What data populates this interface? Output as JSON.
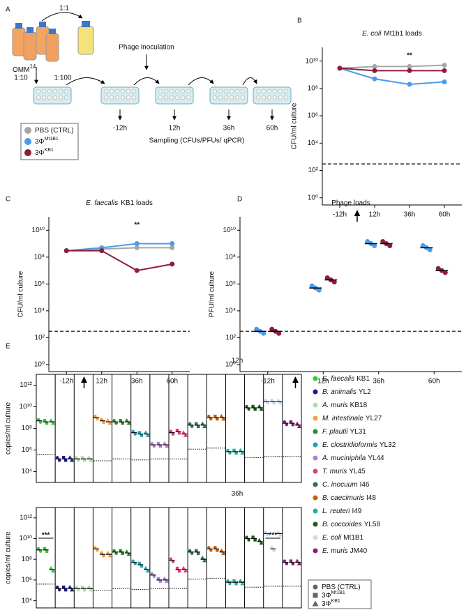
{
  "panel_labels": [
    "A",
    "B",
    "C",
    "D",
    "E"
  ],
  "schematic": {
    "omm": "OMM",
    "omm_sup": "14",
    "ratio_1": "1:1",
    "ratio_2": "1:10",
    "ratio_3": "1:100",
    "inoculation": "Phage inoculation",
    "times": [
      "-12h",
      "12h",
      "36h",
      "60h"
    ],
    "sampling": "Sampling (CFUs/PFUs/ qPCR)"
  },
  "groups": [
    {
      "name": "PBS (CTRL)",
      "color": "#a6a6a6"
    },
    {
      "name": "3Φ",
      "sup": "Mt1B1",
      "color": "#4a9be8"
    },
    {
      "name": "3Φ",
      "sup": "KB1",
      "color": "#8c1d3c"
    }
  ],
  "species": [
    {
      "species": "E. faecalis",
      "strain": "KB1",
      "color": "#33cc33"
    },
    {
      "species": "B. animalis",
      "strain": "YL2",
      "color": "#1a1a8c"
    },
    {
      "species": "A. muris",
      "strain": "KB18",
      "color": "#a8e0a8"
    },
    {
      "species": "M. intestinale",
      "strain": "YL27",
      "color": "#f0a040"
    },
    {
      "species": "F. plautii",
      "strain": "YL31",
      "color": "#2e8b2e"
    },
    {
      "species": "E. clostridioformis",
      "strain": "YL32",
      "color": "#2aa0b0"
    },
    {
      "species": "A. muciniphila",
      "strain": "YL44",
      "color": "#b080d8"
    },
    {
      "species": "T. muris",
      "strain": "YL45",
      "color": "#e04070"
    },
    {
      "species": "C. inocuum",
      "strain": "I46",
      "color": "#2e6e5e"
    },
    {
      "species": "B. caecimuris",
      "strain": "I48",
      "color": "#c06010"
    },
    {
      "species": "L. reuteri",
      "strain": "I49",
      "color": "#20b0a0"
    },
    {
      "species": "B. coccoides",
      "strain": "YL58",
      "color": "#1e5a1e"
    },
    {
      "species": "E. coli",
      "strain": "Mt1B1",
      "color": "#c8dcf0"
    },
    {
      "species": "E. muris",
      "strain": "JM40",
      "color": "#8b1a7a"
    }
  ],
  "markers": [
    {
      "name": "PBS (CTRL)"
    },
    {
      "name": "3Φ",
      "sup": "Mt1B1"
    },
    {
      "name": "3Φ",
      "sup": "KB1"
    }
  ],
  "chart_data": [
    {
      "type": "line",
      "title_species": "E. coli",
      "title": "Mt1b1 loads",
      "ylabel": "CFU/ml culture",
      "categories": [
        "-12h",
        "12h",
        "36h",
        "60h"
      ],
      "log_scale": true,
      "ylim": [
        0.3,
        100000000000.0
      ],
      "yticks": [
        {
          "value": 1,
          "label": "10⁰"
        },
        {
          "value": 100,
          "label": "10²"
        },
        {
          "value": 10000,
          "label": "10⁴"
        },
        {
          "value": 1000000,
          "label": "10⁶"
        },
        {
          "value": 100000000,
          "label": "10⁸"
        },
        {
          "value": 10000000000,
          "label": "10¹⁰"
        }
      ],
      "detection_limit": 300,
      "annotation": "**",
      "series": [
        {
          "color": "#a6a6a6",
          "values": [
            3000000000.0,
            4000000000.0,
            4000000000.0,
            5000000000.0
          ]
        },
        {
          "color": "#4a9be8",
          "values": [
            3000000000.0,
            500000000.0,
            200000000.0,
            300000000.0
          ]
        },
        {
          "color": "#8c1d3c",
          "values": [
            3000000000.0,
            2000000000.0,
            2000000000.0,
            2000000000.0
          ]
        }
      ]
    },
    {
      "type": "line",
      "title_species": "E. faecalis",
      "title": "KB1 loads",
      "ylabel": "CFU/ml culture",
      "categories": [
        "-12h",
        "12h",
        "36h",
        "60h"
      ],
      "log_scale": true,
      "ylim": [
        0.3,
        100000000000.0
      ],
      "yticks": [
        {
          "value": 1,
          "label": "10⁰"
        },
        {
          "value": 100,
          "label": "10²"
        },
        {
          "value": 10000,
          "label": "10⁴"
        },
        {
          "value": 1000000,
          "label": "10⁶"
        },
        {
          "value": 100000000,
          "label": "10⁸"
        },
        {
          "value": 10000000000,
          "label": "10¹⁰"
        }
      ],
      "detection_limit": 300,
      "annotation": "**",
      "series": [
        {
          "color": "#a6a6a6",
          "values": [
            300000000.0,
            400000000.0,
            500000000.0,
            500000000.0
          ]
        },
        {
          "color": "#4a9be8",
          "values": [
            300000000.0,
            500000000.0,
            1000000000.0,
            1000000000.0
          ]
        },
        {
          "color": "#8c1d3c",
          "values": [
            300000000.0,
            300000000.0,
            10000000.0,
            30000000.0
          ]
        }
      ]
    },
    {
      "type": "dot",
      "title": "Phage loads",
      "ylabel": "PFU/ml culture",
      "categories": [
        "-12h",
        "12h",
        "36h",
        "60h"
      ],
      "log_scale": true,
      "ylim": [
        0.3,
        100000000000.0
      ],
      "yticks": [
        {
          "value": 1,
          "label": "10⁰"
        },
        {
          "value": 100,
          "label": "10²"
        },
        {
          "value": 10000,
          "label": "10⁴"
        },
        {
          "value": 1000000,
          "label": "10⁶"
        },
        {
          "value": 100000000,
          "label": "10⁸"
        },
        {
          "value": 10000000000,
          "label": "10¹⁰"
        }
      ],
      "detection_limit": 300,
      "series": [
        {
          "color": "#4a9be8",
          "values": [
            300,
            500000.0,
            1000000000.0,
            500000000.0
          ]
        },
        {
          "color": "#8c1d3c",
          "values": [
            300,
            2000000.0,
            1000000000.0,
            10000000.0
          ]
        }
      ]
    },
    {
      "type": "strip",
      "title": "12h",
      "ylabel": "copies/ml culture",
      "log_scale": true,
      "ylim": [
        1000,
        10000000000000.0
      ],
      "yticks": [
        {
          "value": 10000,
          "label": "10⁴"
        },
        {
          "value": 1000000,
          "label": "10⁶"
        },
        {
          "value": 100000000,
          "label": "10⁸"
        },
        {
          "value": 10000000000,
          "label": "10¹⁰"
        },
        {
          "value": 1000000000000,
          "label": "10¹²"
        }
      ],
      "detection_limits": [
        400000,
        150000,
        150000,
        100000,
        150000,
        120000,
        150000,
        150000,
        1200000,
        1500000,
        700000,
        200000,
        250000,
        250000
      ],
      "series": [
        {
          "values": [
            500000000.0,
            400000000.0,
            400000000.0
          ]
        },
        {
          "values": [
            150000.0,
            150000.0,
            150000.0
          ]
        },
        {
          "values": [
            150000.0,
            150000.0,
            150000.0
          ]
        },
        {
          "values": [
            1000000000.0,
            500000000.0,
            400000000.0
          ]
        },
        {
          "values": [
            400000000.0,
            400000000.0,
            400000000.0
          ]
        },
        {
          "values": [
            40000000.0,
            30000000.0,
            30000000.0
          ]
        },
        {
          "values": [
            3000000.0,
            3000000.0,
            3000000.0
          ]
        },
        {
          "values": [
            40000000.0,
            50000000.0,
            30000000.0
          ]
        },
        {
          "values": [
            200000000.0,
            200000000.0,
            200000000.0
          ]
        },
        {
          "values": [
            1000000000.0,
            1000000000.0,
            1000000000.0
          ]
        },
        {
          "values": [
            700000.0,
            700000.0,
            700000.0
          ]
        },
        {
          "values": [
            8000000000.0,
            8000000000.0,
            8000000000.0
          ]
        },
        {
          "values": [
            30000000000.0,
            30000000000.0,
            30000000000.0
          ]
        },
        {
          "values": [
            300000000.0,
            300000000.0,
            200000000.0
          ]
        }
      ]
    },
    {
      "type": "strip",
      "title": "36h",
      "ylabel": "copies/ml culture",
      "log_scale": true,
      "ylim": [
        2000,
        10000000000000.0
      ],
      "yticks": [
        {
          "value": 10000,
          "label": "10⁴"
        },
        {
          "value": 1000000,
          "label": "10⁶"
        },
        {
          "value": 100000000,
          "label": "10⁸"
        },
        {
          "value": 10000000000,
          "label": "10¹⁰"
        },
        {
          "value": 1000000000000,
          "label": "10¹²"
        }
      ],
      "detection_limits": [
        400000,
        150000,
        150000,
        100000,
        150000,
        120000,
        150000,
        150000,
        1200000,
        1500000,
        700000,
        200000,
        250000,
        250000
      ],
      "annotations": [
        "***",
        "***"
      ],
      "series": [
        {
          "values": [
            800000000.0,
            800000000.0,
            10000000.0
          ]
        },
        {
          "values": [
            150000.0,
            150000.0,
            150000.0
          ]
        },
        {
          "values": [
            150000.0,
            150000.0,
            150000.0
          ]
        },
        {
          "values": [
            1000000000.0,
            300000000.0,
            300000000.0
          ]
        },
        {
          "values": [
            500000000.0,
            500000000.0,
            400000000.0
          ]
        },
        {
          "values": [
            50000000.0,
            30000000.0,
            10000000.0
          ]
        },
        {
          "values": [
            3000000.0,
            1000000.0,
            1000000.0
          ]
        },
        {
          "values": [
            80000000.0,
            10000000.0,
            10000000.0
          ]
        },
        {
          "values": [
            500000000.0,
            500000000.0,
            100000000.0
          ]
        },
        {
          "values": [
            1000000000.0,
            1000000000.0,
            500000000.0
          ]
        },
        {
          "values": [
            600000.0,
            600000.0,
            600000.0
          ]
        },
        {
          "values": [
            10000000000.0,
            10000000000.0,
            5000000000.0
          ]
        },
        {
          "values": [
            30000000000.0,
            1000000000.0,
            30000000000.0
          ]
        },
        {
          "values": [
            50000000.0,
            50000000.0,
            50000000.0
          ]
        }
      ]
    }
  ]
}
